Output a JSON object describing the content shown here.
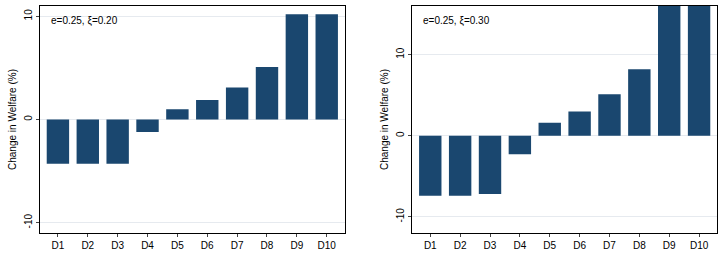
{
  "chart_data": [
    {
      "type": "bar",
      "annotations": [
        "e=0.25, ξ=0.20"
      ],
      "y_label": "Change in Welfare (%)",
      "categories": [
        "D1",
        "D2",
        "D3",
        "D4",
        "D5",
        "D6",
        "D7",
        "D8",
        "D9",
        "D10"
      ],
      "values": [
        -4.3,
        -4.3,
        -4.3,
        -1.2,
        1.0,
        1.9,
        3.1,
        5.1,
        10.2,
        10.2
      ],
      "color": "#1a476f",
      "ylim": [
        -11,
        11
      ],
      "yticks": [
        -10,
        0,
        10
      ],
      "grid": true
    },
    {
      "type": "bar",
      "annotations": [
        "e=0.25, ξ=0.30"
      ],
      "y_label": "Change in Welfare (%)",
      "categories": [
        "D1",
        "D2",
        "D3",
        "D4",
        "D5",
        "D6",
        "D7",
        "D8",
        "D9",
        "D10"
      ],
      "values": [
        -7.4,
        -7.4,
        -7.2,
        -2.3,
        1.6,
        3.0,
        5.1,
        8.2,
        16,
        16
      ],
      "color": "#1a476f",
      "ylim": [
        -12,
        16
      ],
      "yticks": [
        -10,
        0,
        10
      ],
      "grid": true
    }
  ]
}
